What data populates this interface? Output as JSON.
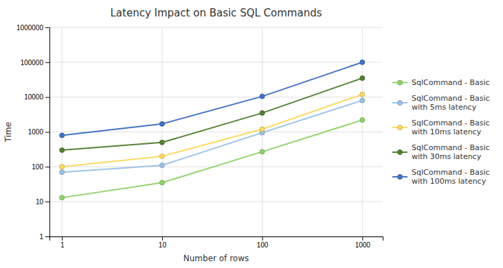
{
  "chart_data": {
    "type": "line",
    "title": "Latency Impact on Basic SQL Commands",
    "xlabel": "Number of rows",
    "ylabel": "Time",
    "x": [
      1,
      10,
      100,
      1000
    ],
    "series": [
      {
        "name": "SqlCommand - Basic",
        "color": "#92d36e",
        "values": [
          13,
          35,
          270,
          2200
        ]
      },
      {
        "name": "SqlCommand - Basic\nwith 5ms latency",
        "color": "#9dc3e6",
        "values": [
          70,
          110,
          950,
          8000
        ]
      },
      {
        "name": "SqlCommand - Basic\nwith 10ms latency",
        "color": "#ffd966",
        "values": [
          100,
          200,
          1200,
          12000
        ]
      },
      {
        "name": "SqlCommand - Basic\nwith 30ms latency",
        "color": "#548235",
        "values": [
          300,
          500,
          3500,
          35000
        ]
      },
      {
        "name": "SqlCommand - Basic\nwith 100ms latency",
        "color": "#4472c4",
        "values": [
          800,
          1700,
          10500,
          100000
        ]
      }
    ],
    "xlim": [
      0.75,
      1600
    ],
    "ylim": [
      1,
      1000000
    ],
    "xticks": [
      1,
      10,
      100,
      1000
    ],
    "yticks": [
      1,
      10,
      100,
      1000,
      10000,
      100000,
      1000000
    ],
    "log": true,
    "marker": "circle",
    "grid": true,
    "legend": "right"
  }
}
